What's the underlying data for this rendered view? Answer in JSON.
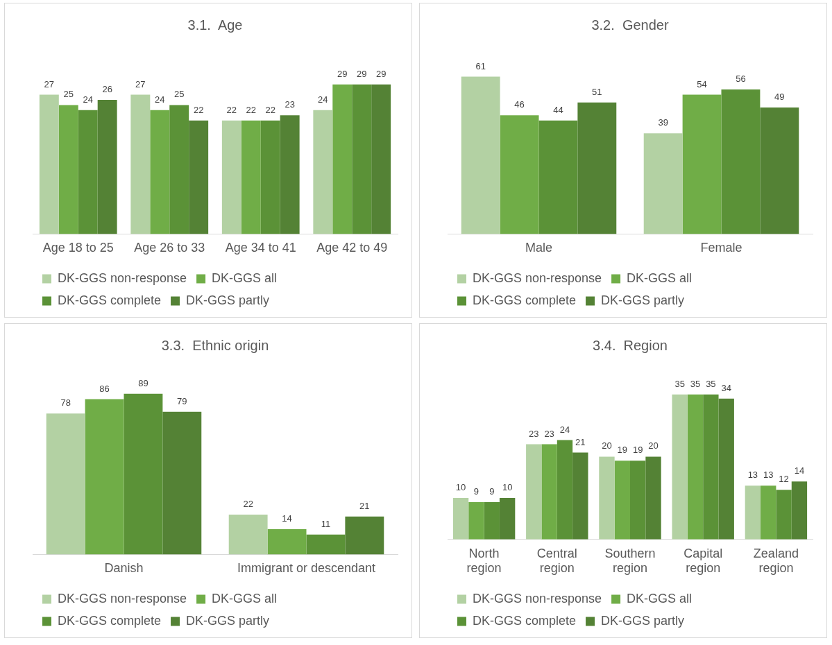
{
  "chart_data": [
    {
      "type": "bar",
      "title": "3.1.  Age",
      "categories": [
        "Age 18 to 25",
        "Age 26 to 33",
        "Age 34 to 41",
        "Age 42 to 49"
      ],
      "data_labels": true,
      "grid": false,
      "legend": "bottom",
      "tick_labels": "x",
      "series": [
        {
          "name": "DK-GGS non-response",
          "color": "#b3d1a3",
          "values": [
            27,
            27,
            22,
            24
          ]
        },
        {
          "name": "DK-GGS all",
          "color": "#70ad47",
          "values": [
            25,
            24,
            22,
            29
          ]
        },
        {
          "name": "DK-GGS complete",
          "color": "#5b9237",
          "values": [
            24,
            25,
            22,
            29
          ]
        },
        {
          "name": "DK-GGS partly",
          "color": "#548235",
          "values": [
            26,
            22,
            23,
            29
          ]
        }
      ]
    },
    {
      "type": "bar",
      "title": "3.2.  Gender",
      "categories": [
        "Male",
        "Female"
      ],
      "data_labels": true,
      "grid": false,
      "legend": "bottom",
      "tick_labels": "x",
      "series": [
        {
          "name": "DK-GGS non-response",
          "color": "#b3d1a3",
          "values": [
            61,
            39
          ]
        },
        {
          "name": "DK-GGS all",
          "color": "#70ad47",
          "values": [
            46,
            54
          ]
        },
        {
          "name": "DK-GGS complete",
          "color": "#5b9237",
          "values": [
            44,
            56
          ]
        },
        {
          "name": "DK-GGS partly",
          "color": "#548235",
          "values": [
            51,
            49
          ]
        }
      ]
    },
    {
      "type": "bar",
      "title": "3.3.  Ethnic origin",
      "categories": [
        "Danish",
        "Immigrant or descendant"
      ],
      "data_labels": true,
      "grid": false,
      "legend": "bottom",
      "tick_labels": "x",
      "series": [
        {
          "name": "DK-GGS non-response",
          "color": "#b3d1a3",
          "values": [
            78,
            22
          ]
        },
        {
          "name": "DK-GGS all",
          "color": "#70ad47",
          "values": [
            86,
            14
          ]
        },
        {
          "name": "DK-GGS complete",
          "color": "#5b9237",
          "values": [
            89,
            11
          ]
        },
        {
          "name": "DK-GGS partly",
          "color": "#548235",
          "values": [
            79,
            21
          ]
        }
      ]
    },
    {
      "type": "bar",
      "title": "3.4.  Region",
      "categories": [
        "North region",
        "Central region",
        "Southern region",
        "Capital region",
        "Zealand region"
      ],
      "data_labels": true,
      "grid": false,
      "legend": "bottom",
      "tick_labels": "x",
      "series": [
        {
          "name": "DK-GGS non-response",
          "color": "#b3d1a3",
          "values": [
            10,
            23,
            20,
            35,
            13
          ]
        },
        {
          "name": "DK-GGS all",
          "color": "#70ad47",
          "values": [
            9,
            23,
            19,
            35,
            13
          ]
        },
        {
          "name": "DK-GGS complete",
          "color": "#5b9237",
          "values": [
            9,
            24,
            19,
            35,
            12
          ]
        },
        {
          "name": "DK-GGS partly",
          "color": "#548235",
          "values": [
            10,
            21,
            20,
            34,
            14
          ]
        }
      ]
    }
  ]
}
